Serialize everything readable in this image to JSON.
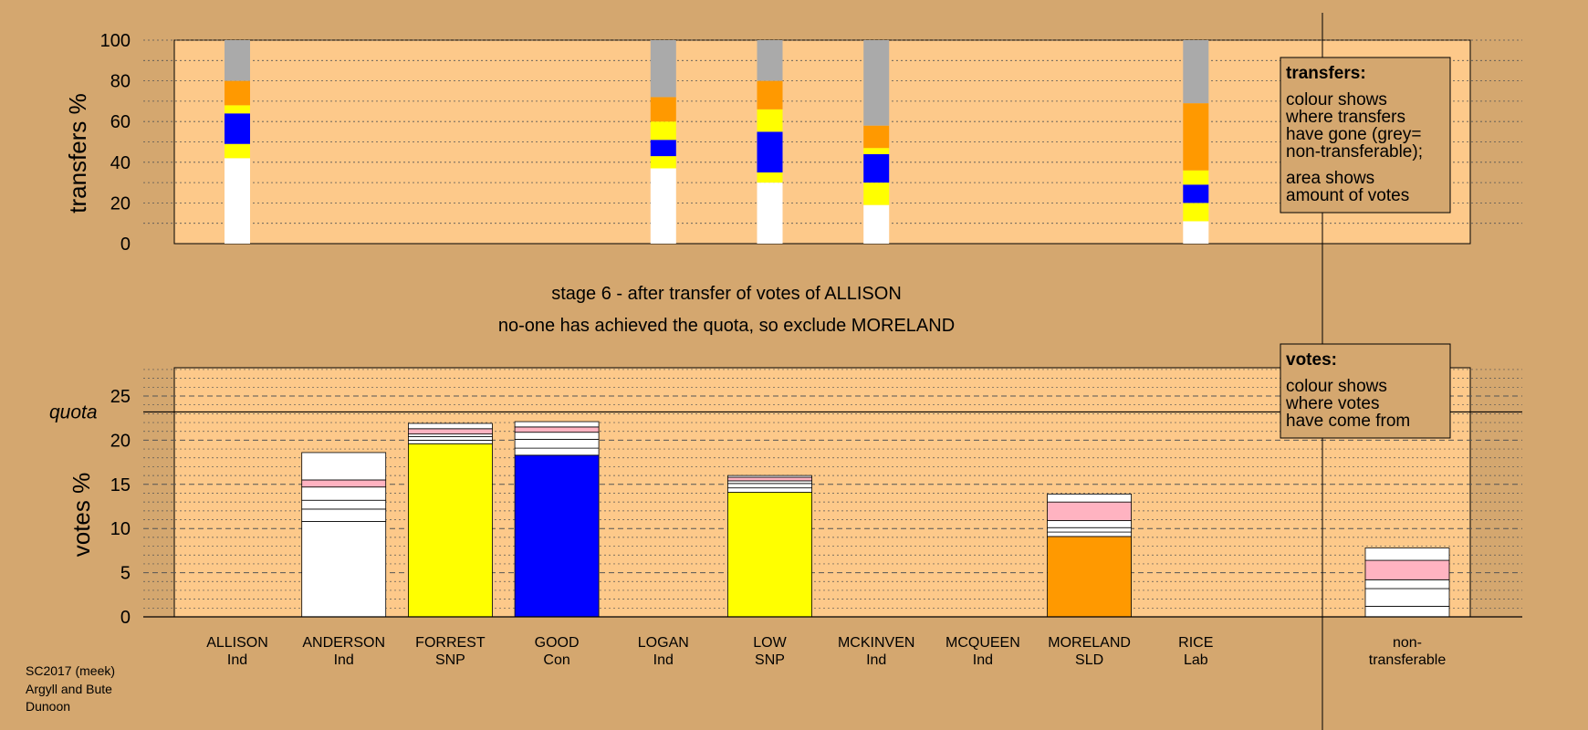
{
  "chart_data": [
    {
      "type": "bar",
      "stacked": true,
      "ylabel": "transfers %",
      "ylim": [
        0,
        100
      ],
      "yticks": [
        0,
        20,
        40,
        60,
        80,
        100
      ],
      "grid": true,
      "categories": [
        "ALLISON",
        "LOGAN",
        "LOW",
        "MCKINVEN",
        "RICE"
      ],
      "stacks": [
        [
          {
            "color": "#ffffff",
            "value": 42
          },
          {
            "color": "#ffff00",
            "value": 7
          },
          {
            "color": "#0000ff",
            "value": 15
          },
          {
            "color": "#ffff00",
            "value": 4
          },
          {
            "color": "#ff9900",
            "value": 12
          },
          {
            "color": "#aaaaaa",
            "value": 20
          }
        ],
        [
          {
            "color": "#ffffff",
            "value": 37
          },
          {
            "color": "#ffff00",
            "value": 6
          },
          {
            "color": "#0000ff",
            "value": 8
          },
          {
            "color": "#ffff00",
            "value": 9
          },
          {
            "color": "#ff9900",
            "value": 12
          },
          {
            "color": "#aaaaaa",
            "value": 28
          }
        ],
        [
          {
            "color": "#ffffff",
            "value": 30
          },
          {
            "color": "#ffff00",
            "value": 5
          },
          {
            "color": "#0000ff",
            "value": 20
          },
          {
            "color": "#ffff00",
            "value": 11
          },
          {
            "color": "#ff9900",
            "value": 14
          },
          {
            "color": "#aaaaaa",
            "value": 20
          }
        ],
        [
          {
            "color": "#ffffff",
            "value": 19
          },
          {
            "color": "#ffff00",
            "value": 11
          },
          {
            "color": "#0000ff",
            "value": 14
          },
          {
            "color": "#ffff00",
            "value": 3
          },
          {
            "color": "#ff9900",
            "value": 11
          },
          {
            "color": "#aaaaaa",
            "value": 42
          }
        ],
        [
          {
            "color": "#ffffff",
            "value": 11
          },
          {
            "color": "#ffff00",
            "value": 9
          },
          {
            "color": "#0000ff",
            "value": 9
          },
          {
            "color": "#ffff00",
            "value": 7
          },
          {
            "color": "#ff9900",
            "value": 33
          },
          {
            "color": "#aaaaaa",
            "value": 31
          }
        ]
      ],
      "legend": {
        "title": "transfers:",
        "lines": [
          "colour shows",
          "where transfers",
          "have gone (grey=",
          "non-transferable);",
          "area shows",
          "amount of votes"
        ]
      }
    },
    {
      "type": "bar",
      "stacked": true,
      "ylabel": "votes %",
      "ylim": [
        0,
        28
      ],
      "yticks": [
        0,
        5,
        10,
        15,
        20,
        25
      ],
      "grid": true,
      "quota": 23.2,
      "quota_label": "quota",
      "candidates": [
        {
          "name": "ALLISON",
          "party": "Ind",
          "segments": []
        },
        {
          "name": "ANDERSON",
          "party": "Ind",
          "segments": [
            {
              "color": "#ffffff",
              "value": 10.8
            },
            {
              "color": "#ffffff",
              "value": 1.4
            },
            {
              "color": "#ffffff",
              "value": 1.0
            },
            {
              "color": "#ffffff",
              "value": 1.5
            },
            {
              "color": "#ffb3c1",
              "value": 0.8
            },
            {
              "color": "#ffffff",
              "value": 3.1
            }
          ]
        },
        {
          "name": "FORREST",
          "party": "SNP",
          "segments": [
            {
              "color": "#ffff00",
              "value": 19.6
            },
            {
              "color": "#ffffff",
              "value": 0.4
            },
            {
              "color": "#ffffff",
              "value": 0.4
            },
            {
              "color": "#ffffff",
              "value": 0.3
            },
            {
              "color": "#ffb3c1",
              "value": 0.6
            },
            {
              "color": "#ffffff",
              "value": 0.6
            }
          ]
        },
        {
          "name": "GOOD",
          "party": "Con",
          "segments": [
            {
              "color": "#0000ff",
              "value": 18.3
            },
            {
              "color": "#ffffff",
              "value": 0.8
            },
            {
              "color": "#ffffff",
              "value": 1.0
            },
            {
              "color": "#ffffff",
              "value": 0.8
            },
            {
              "color": "#ffb3c1",
              "value": 0.6
            },
            {
              "color": "#ffffff",
              "value": 0.6
            }
          ]
        },
        {
          "name": "LOGAN",
          "party": "Ind",
          "segments": []
        },
        {
          "name": "LOW",
          "party": "SNP",
          "segments": [
            {
              "color": "#ffff00",
              "value": 14.1
            },
            {
              "color": "#ffffff",
              "value": 0.5
            },
            {
              "color": "#ffffff",
              "value": 0.5
            },
            {
              "color": "#ffffff",
              "value": 0.3
            },
            {
              "color": "#ffb3c1",
              "value": 0.4
            },
            {
              "color": "#ffffff",
              "value": 0.2
            }
          ]
        },
        {
          "name": "MCKINVEN",
          "party": "Ind",
          "segments": []
        },
        {
          "name": "MCQUEEN",
          "party": "Ind",
          "segments": []
        },
        {
          "name": "MORELAND",
          "party": "SLD",
          "segments": [
            {
              "color": "#ff9900",
              "value": 9.1
            },
            {
              "color": "#ffffff",
              "value": 0.5
            },
            {
              "color": "#ffffff",
              "value": 0.5
            },
            {
              "color": "#ffffff",
              "value": 0.8
            },
            {
              "color": "#ffb3c1",
              "value": 2.1
            },
            {
              "color": "#ffffff",
              "value": 0.9
            }
          ]
        },
        {
          "name": "RICE",
          "party": "Lab",
          "segments": []
        },
        {
          "name": "non-",
          "party": "transferable",
          "segments": [
            {
              "color": "#ffffff",
              "value": 1.2
            },
            {
              "color": "#ffffff",
              "value": 2.0
            },
            {
              "color": "#ffffff",
              "value": 1.0
            },
            {
              "color": "#ffb3c1",
              "value": 2.2
            },
            {
              "color": "#ffffff",
              "value": 1.4
            }
          ]
        }
      ],
      "legend": {
        "title": "votes:",
        "lines": [
          "colour shows",
          "where votes",
          "have come from"
        ]
      }
    }
  ],
  "stage_text": "stage 6 - after transfer of votes of ALLISON",
  "status_text": "no-one has achieved the quota, so exclude MORELAND",
  "footer": [
    "SC2017 (meek)",
    "Argyll and Bute",
    "Dunoon"
  ]
}
